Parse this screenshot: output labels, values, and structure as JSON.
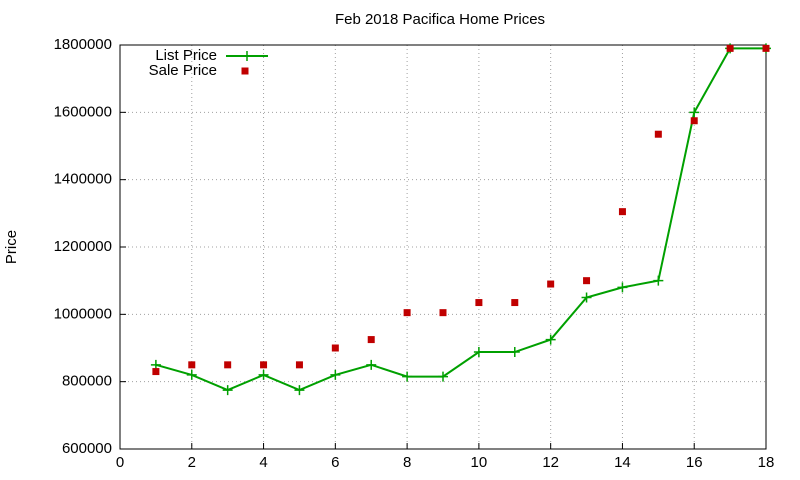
{
  "chart_data": {
    "type": "line",
    "title": "Feb 2018 Pacifica Home Prices",
    "ylabel": "Price",
    "x": [
      1,
      2,
      3,
      4,
      5,
      6,
      7,
      8,
      9,
      10,
      11,
      12,
      13,
      14,
      15,
      16,
      17,
      18
    ],
    "series": [
      {
        "name": "List Price",
        "color": "#00a000",
        "style": "linespoints",
        "values": [
          850000,
          820000,
          775000,
          820000,
          775000,
          820000,
          850000,
          815000,
          815000,
          888000,
          888000,
          925000,
          1050000,
          1080000,
          1100000,
          1600000,
          1790000,
          1790000
        ]
      },
      {
        "name": "Sale Price",
        "color": "#c00000",
        "style": "points",
        "values": [
          830000,
          850000,
          850000,
          850000,
          850000,
          900000,
          925000,
          1005000,
          1005000,
          1035000,
          1035000,
          1090000,
          1100000,
          1305000,
          1535000,
          1575000,
          1790000,
          1790000
        ]
      }
    ],
    "xlim": [
      0,
      18
    ],
    "xticks": [
      0,
      2,
      4,
      6,
      8,
      10,
      12,
      14,
      16,
      18
    ],
    "ylim": [
      600000,
      1800000
    ],
    "yticks": [
      600000,
      800000,
      1000000,
      1200000,
      1400000,
      1600000,
      1800000
    ],
    "grid": true,
    "legend": "top-left"
  }
}
